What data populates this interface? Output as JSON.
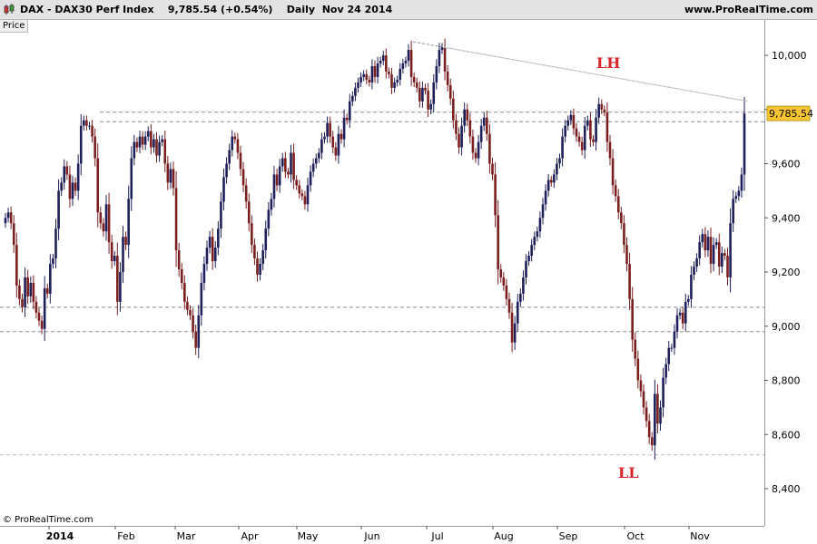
{
  "header": {
    "symbol": "DAX",
    "separator": " - ",
    "name": "DAX30 Perf Index",
    "last": "9,785.54",
    "change": "(+0.54%)",
    "period": "Daily",
    "date": "Nov 24 2014",
    "site": "www.ProRealTime.com"
  },
  "panel_label": "Price",
  "copyright": "© ProRealTime.com",
  "colors": {
    "up": "#1f1f5a",
    "down": "#7a1f1f",
    "annotation": "#d8262c",
    "price_tag": "#f7c531"
  },
  "chart_data": {
    "type": "candlestick",
    "xlabels": [
      "2014",
      "Feb",
      "Mar",
      "Apr",
      "May",
      "Jun",
      "Jul",
      "Aug",
      "Sep",
      "Oct",
      "Nov"
    ],
    "yticks": [
      "8,400",
      "8,600",
      "8,800",
      "9,000",
      "9,200",
      "9,400",
      "9,600",
      "9,800",
      "10,000"
    ],
    "ylim": [
      8270,
      10090
    ],
    "last_price_label": "9,785.54",
    "annotations": [
      "LH",
      "LL"
    ],
    "reference_levels": [
      9790,
      9755,
      9070,
      8980,
      8525
    ],
    "trendline": {
      "from": [
        "Jun",
        10050
      ],
      "to": [
        "Nov 24 2014",
        9830
      ]
    },
    "close": [
      9400,
      9420,
      9380,
      9300,
      9150,
      9100,
      9070,
      9180,
      9110,
      9160,
      9090,
      9050,
      9020,
      8990,
      9140,
      9120,
      9230,
      9250,
      9360,
      9500,
      9530,
      9590,
      9560,
      9470,
      9530,
      9500,
      9600,
      9740,
      9760,
      9740,
      9740,
      9700,
      9620,
      9420,
      9380,
      9350,
      9450,
      9310,
      9240,
      9260,
      9090,
      9200,
      9330,
      9300,
      9470,
      9620,
      9680,
      9660,
      9700,
      9670,
      9700,
      9720,
      9660,
      9690,
      9630,
      9680,
      9690,
      9600,
      9530,
      9580,
      9510,
      9280,
      9210,
      9160,
      9090,
      9060,
      9040,
      8980,
      8920,
      9040,
      9160,
      9230,
      9290,
      9330,
      9240,
      9290,
      9360,
      9460,
      9550,
      9600,
      9650,
      9700,
      9690,
      9640,
      9580,
      9520,
      9460,
      9380,
      9300,
      9250,
      9190,
      9230,
      9280,
      9360,
      9430,
      9470,
      9560,
      9520,
      9590,
      9620,
      9570,
      9560,
      9640,
      9540,
      9520,
      9490,
      9480,
      9450,
      9520,
      9570,
      9600,
      9620,
      9640,
      9690,
      9700,
      9750,
      9700,
      9660,
      9630,
      9710,
      9690,
      9770,
      9760,
      9830,
      9850,
      9880,
      9900,
      9920,
      9930,
      9910,
      9900,
      9960,
      9920,
      9970,
      9980,
      10000,
      9940,
      9930,
      9880,
      9900,
      9910,
      9950,
      9970,
      9980,
      10020,
      9920,
      9900,
      9880,
      9830,
      9880,
      9870,
      9800,
      9820,
      9900,
      9960,
      10020,
      10030,
      9940,
      9890,
      9840,
      9760,
      9710,
      9660,
      9740,
      9800,
      9760,
      9700,
      9640,
      9620,
      9680,
      9740,
      9770,
      9710,
      9600,
      9560,
      9410,
      9210,
      9180,
      9150,
      9100,
      9050,
      8940,
      9010,
      9090,
      9120,
      9180,
      9240,
      9260,
      9300,
      9330,
      9350,
      9400,
      9450,
      9500,
      9540,
      9530,
      9560,
      9600,
      9620,
      9700,
      9740,
      9760,
      9780,
      9730,
      9700,
      9680,
      9650,
      9740,
      9760,
      9690,
      9680,
      9770,
      9820,
      9800,
      9790,
      9680,
      9620,
      9520,
      9480,
      9420,
      9380,
      9300,
      9230,
      9100,
      8950,
      8880,
      8800,
      8760,
      8700,
      8650,
      8590,
      8560,
      8750,
      8640,
      8700,
      8810,
      8860,
      8920,
      8920,
      8980,
      9040,
      9050,
      9010,
      9090,
      9100,
      9190,
      9220,
      9250,
      9310,
      9340,
      9280,
      9330,
      9230,
      9300,
      9310,
      9220,
      9270,
      9260,
      9180,
      9380,
      9470,
      9480,
      9500,
      9560,
      9785.54
    ]
  }
}
